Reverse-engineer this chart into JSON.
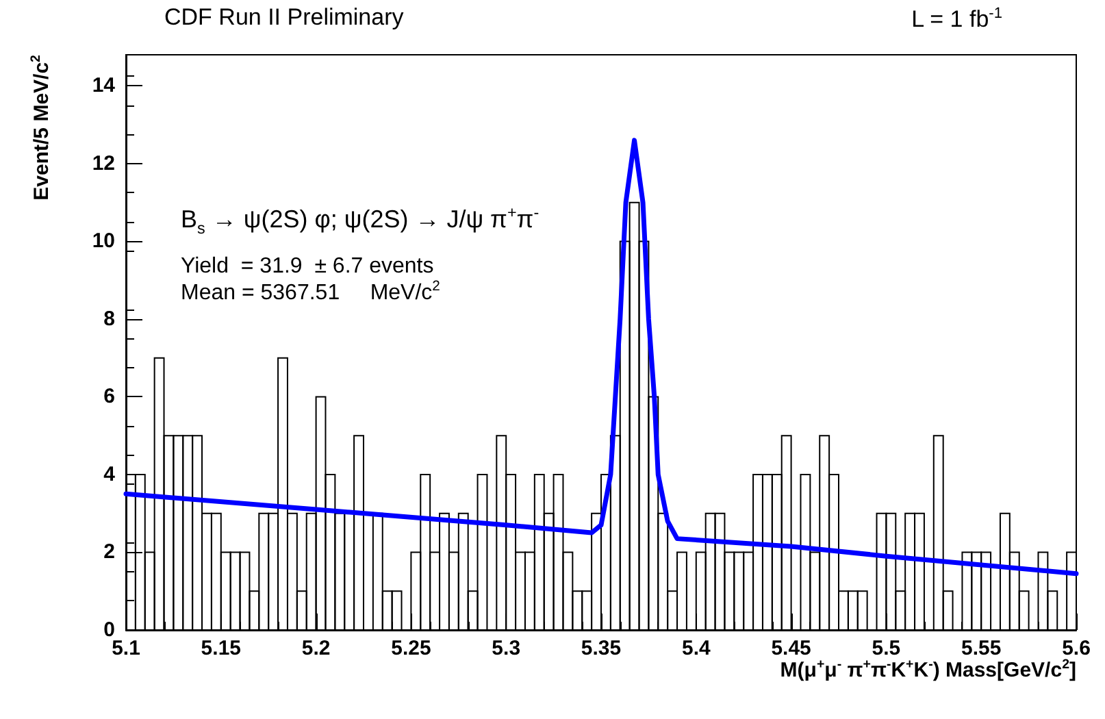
{
  "chart_data": {
    "type": "histogram",
    "title": "CDF Run II Preliminary",
    "xlabel": "M(μ$^{+}$μ$^{-}$ π$^{+}$π$^{-}$K$^{+}$K$^{-}$) Mass[GeV/c$^{2}$]",
    "ylabel": "Event/5 MeV/c$^{2}$",
    "annotations": [
      "L = 1 fb$^{-1}$",
      "B$_{s}$ → ψ(2S) φ; ψ(2S) → J/ψ π$^{+}$π$^{-}$",
      "Yield  = 31.9  ± 6.7 events",
      "Mean = 5367.51     MeV/c$^{2}$"
    ],
    "bins": [
      5.1,
      5.105,
      5.11,
      5.115,
      5.12,
      5.125,
      5.13,
      5.135,
      5.14,
      5.145,
      5.15,
      5.155,
      5.16,
      5.165,
      5.17,
      5.175,
      5.18,
      5.185,
      5.19,
      5.195,
      5.2,
      5.205,
      5.21,
      5.215,
      5.22,
      5.225,
      5.23,
      5.235,
      5.24,
      5.245,
      5.25,
      5.255,
      5.26,
      5.265,
      5.27,
      5.275,
      5.28,
      5.285,
      5.29,
      5.295,
      5.3,
      5.305,
      5.31,
      5.315,
      5.32,
      5.325,
      5.33,
      5.335,
      5.34,
      5.345,
      5.35,
      5.355,
      5.36,
      5.365,
      5.37,
      5.375,
      5.38,
      5.385,
      5.39,
      5.395,
      5.4,
      5.405,
      5.41,
      5.415,
      5.42,
      5.425,
      5.43,
      5.435,
      5.44,
      5.445,
      5.45,
      5.455,
      5.46,
      5.465,
      5.47,
      5.475,
      5.48,
      5.485,
      5.49,
      5.495,
      5.5,
      5.505,
      5.51,
      5.515,
      5.52,
      5.525,
      5.53,
      5.535,
      5.54,
      5.545,
      5.55,
      5.555,
      5.56,
      5.565,
      5.57,
      5.575,
      5.58,
      5.585,
      5.59,
      5.595,
      5.6
    ],
    "values": [
      4,
      4,
      2,
      7,
      5,
      5,
      5,
      5,
      3,
      3,
      2,
      2,
      2,
      1,
      3,
      3,
      7,
      3,
      1,
      3,
      6,
      4,
      3,
      3,
      5,
      0,
      3,
      1,
      1,
      0,
      2,
      4,
      2,
      3,
      2,
      3,
      1,
      4,
      0,
      5,
      4,
      2,
      2,
      4,
      3,
      4,
      2,
      1,
      1,
      3,
      4,
      5,
      10,
      11,
      10,
      6,
      3,
      1,
      2,
      0,
      2,
      3,
      3,
      2,
      2,
      2,
      4,
      4,
      4,
      5,
      0,
      4,
      2,
      5,
      4,
      1,
      1,
      1,
      0,
      3,
      3,
      1,
      3,
      3,
      0,
      5,
      1,
      0,
      2,
      2,
      2,
      0,
      3,
      2,
      1,
      0,
      2,
      1,
      0,
      2
    ],
    "color": "#000000",
    "series": [
      {
        "type": "line",
        "color": "#0000ff",
        "x": [
          5.1,
          5.2,
          5.3,
          5.345,
          5.35,
          5.355,
          5.36,
          5.363,
          5.3675,
          5.372,
          5.375,
          5.378,
          5.38,
          5.385,
          5.39,
          5.45,
          5.5,
          5.6
        ],
        "values": [
          3.5,
          3.1,
          2.7,
          2.5,
          2.7,
          4,
          8,
          11,
          12.6,
          11,
          8,
          6,
          4,
          2.8,
          2.35,
          2.15,
          1.9,
          1.45
        ]
      }
    ],
    "xlim": [
      5.1,
      5.6
    ],
    "xticks": [
      {
        "value": 5.1,
        "label": "5.1"
      },
      {
        "value": 5.15,
        "label": "5.15"
      },
      {
        "value": 5.2,
        "label": "5.2"
      },
      {
        "value": 5.25,
        "label": "5.25"
      },
      {
        "value": 5.3,
        "label": "5.3"
      },
      {
        "value": 5.35,
        "label": "5.35"
      },
      {
        "value": 5.4,
        "label": "5.4"
      },
      {
        "value": 5.45,
        "label": "5.45"
      },
      {
        "value": 5.5,
        "label": "5.5"
      },
      {
        "value": 5.55,
        "label": "5.55"
      },
      {
        "value": 5.6,
        "label": "5.6"
      }
    ],
    "ylim": [
      0,
      14.8
    ],
    "yticks": [
      0,
      2,
      4,
      6,
      8,
      10,
      12,
      14
    ],
    "grid": false,
    "marker": "none",
    "line_style": "solid"
  }
}
